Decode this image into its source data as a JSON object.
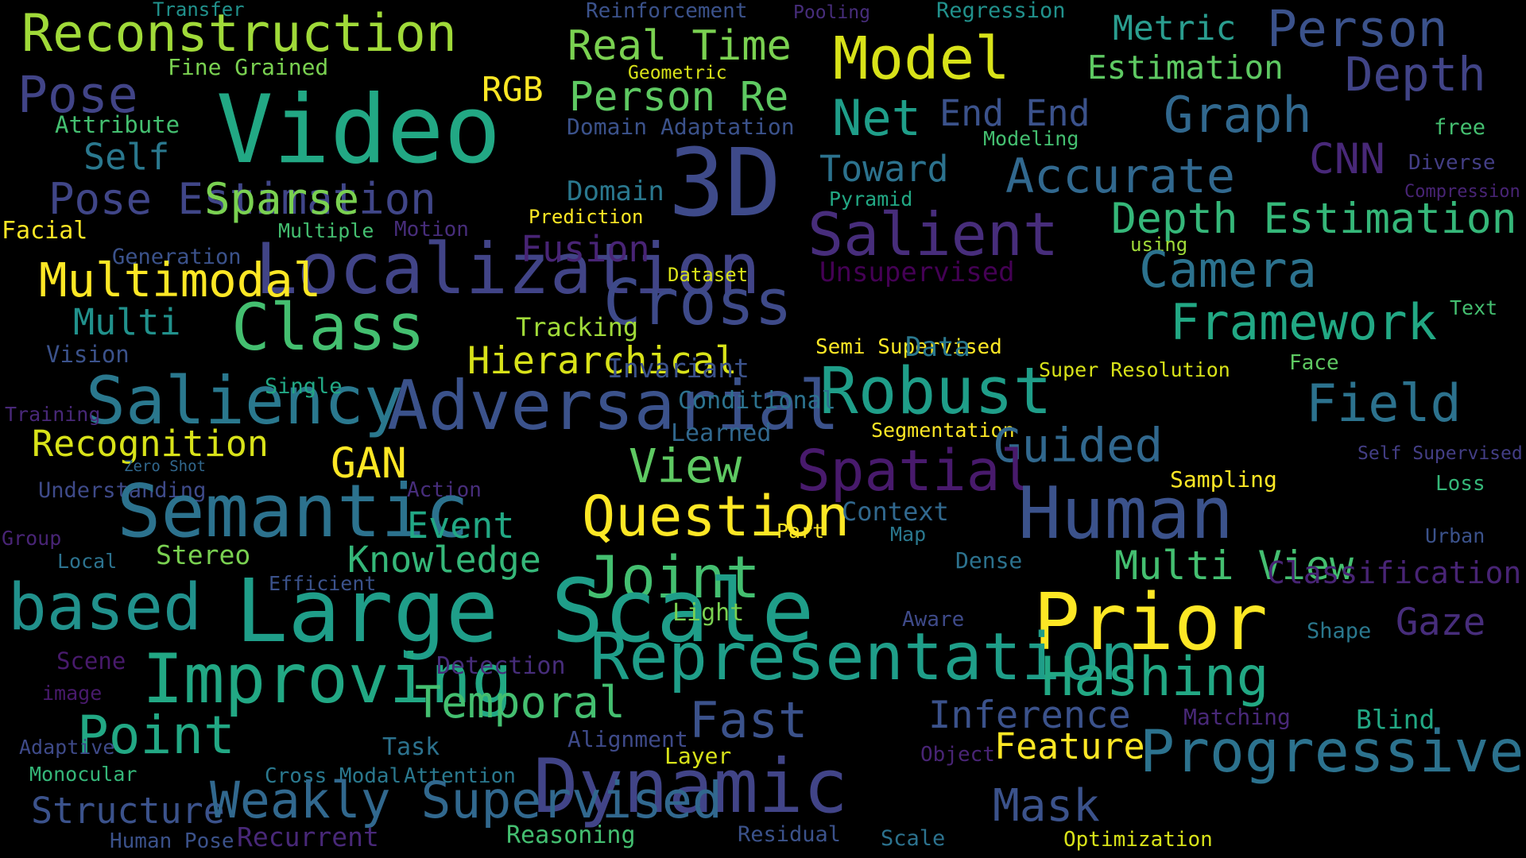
{
  "palette": {
    "background": "#000000",
    "dark_purple": "#440154",
    "indigo": "#3b528b",
    "teal": "#21918c",
    "green": "#5ec962",
    "yellow": "#fde725"
  },
  "words": [
    {
      "text": "Transfer",
      "color": "#21918c"
    },
    {
      "text": "Reinforcement",
      "color": "#3b528b"
    },
    {
      "text": "Pooling",
      "color": "#472d7b"
    },
    {
      "text": "Regression",
      "color": "#21918c"
    },
    {
      "text": "Reconstruction",
      "color": "#a0da39"
    },
    {
      "text": "Real Time",
      "color": "#7ad151"
    },
    {
      "text": "Model",
      "color": "#d8e219"
    },
    {
      "text": "Metric",
      "color": "#2a9d8f"
    },
    {
      "text": "Person",
      "color": "#3b528b"
    },
    {
      "text": "Fine Grained",
      "color": "#7ad151"
    },
    {
      "text": "Geometric",
      "color": "#d8e219"
    },
    {
      "text": "Estimation",
      "color": "#5ec962"
    },
    {
      "text": "Depth",
      "color": "#414487"
    },
    {
      "text": "Pose",
      "color": "#414487"
    },
    {
      "text": "Video",
      "color": "#22a884"
    },
    {
      "text": "RGB",
      "color": "#fde725"
    },
    {
      "text": "Person Re",
      "color": "#5ec962"
    },
    {
      "text": "End End",
      "color": "#3b528b"
    },
    {
      "text": "Net",
      "color": "#1f9e89"
    },
    {
      "text": "Graph",
      "color": "#31688e"
    },
    {
      "text": "Attribute",
      "color": "#44bf70"
    },
    {
      "text": "Domain Adaptation",
      "color": "#3b528b"
    },
    {
      "text": "Modeling",
      "color": "#44bf70"
    },
    {
      "text": "free",
      "color": "#44bf70"
    },
    {
      "text": "Self",
      "color": "#2a788e"
    },
    {
      "text": "3D",
      "color": "#3e4a89"
    },
    {
      "text": "CNN",
      "color": "#482878"
    },
    {
      "text": "Diverse",
      "color": "#433e85"
    },
    {
      "text": "Toward",
      "color": "#2c728e"
    },
    {
      "text": "Accurate",
      "color": "#31688e"
    },
    {
      "text": "Pose Estimation",
      "color": "#404688"
    },
    {
      "text": "Sparse",
      "color": "#7ad151"
    },
    {
      "text": "Domain",
      "color": "#2a788e"
    },
    {
      "text": "Pyramid",
      "color": "#22a884"
    },
    {
      "text": "Compression",
      "color": "#482475"
    },
    {
      "text": "Prediction",
      "color": "#fde725"
    },
    {
      "text": "Depth Estimation",
      "color": "#35b779"
    },
    {
      "text": "Facial",
      "color": "#fde725"
    },
    {
      "text": "Multiple",
      "color": "#44bf70"
    },
    {
      "text": "Motion",
      "color": "#472d7b"
    },
    {
      "text": "Salient",
      "color": "#472d7b"
    },
    {
      "text": "using",
      "color": "#a0da39"
    },
    {
      "text": "Localization",
      "color": "#414487"
    },
    {
      "text": "Fusion",
      "color": "#482475"
    },
    {
      "text": "Generation",
      "color": "#3b528b"
    },
    {
      "text": "Camera",
      "color": "#2c728e"
    },
    {
      "text": "Multimodal",
      "color": "#fde725"
    },
    {
      "text": "Dataset",
      "color": "#d8e219"
    },
    {
      "text": "Unsupervised",
      "color": "#440154"
    },
    {
      "text": "Cross",
      "color": "#3e4a89"
    },
    {
      "text": "Text",
      "color": "#44bf70"
    },
    {
      "text": "Multi",
      "color": "#21918c"
    },
    {
      "text": "Class",
      "color": "#44bf70"
    },
    {
      "text": "Tracking",
      "color": "#a0da39"
    },
    {
      "text": "Framework",
      "color": "#22a884"
    },
    {
      "text": "Vision",
      "color": "#3b528b"
    },
    {
      "text": "Semi Supervised",
      "color": "#fde725"
    },
    {
      "text": "Data",
      "color": "#2a788e"
    },
    {
      "text": "Hierarchical",
      "color": "#d8e219"
    },
    {
      "text": "Invariant",
      "color": "#3b528b"
    },
    {
      "text": "Super Resolution",
      "color": "#d8e219"
    },
    {
      "text": "Face",
      "color": "#5ec962"
    },
    {
      "text": "Saliency",
      "color": "#2a788e"
    },
    {
      "text": "Single",
      "color": "#22a884"
    },
    {
      "text": "Adversarial",
      "color": "#3b528b"
    },
    {
      "text": "Robust",
      "color": "#1f9e89"
    },
    {
      "text": "Field",
      "color": "#2c728e"
    },
    {
      "text": "Training",
      "color": "#482878"
    },
    {
      "text": "Conditional",
      "color": "#2c728e"
    },
    {
      "text": "Learned",
      "color": "#31688e"
    },
    {
      "text": "Segmentation",
      "color": "#fde725"
    },
    {
      "text": "Recognition",
      "color": "#d8e219"
    },
    {
      "text": "Guided",
      "color": "#31688e"
    },
    {
      "text": "GAN",
      "color": "#fde725"
    },
    {
      "text": "View",
      "color": "#5ec962"
    },
    {
      "text": "Spatial",
      "color": "#481a6c"
    },
    {
      "text": "Self Supervised",
      "color": "#433e85"
    },
    {
      "text": "Zero Shot",
      "color": "#31688e"
    },
    {
      "text": "Sampling",
      "color": "#fde725"
    },
    {
      "text": "Loss",
      "color": "#35b779"
    },
    {
      "text": "Understanding",
      "color": "#3e4a89"
    },
    {
      "text": "Action",
      "color": "#472d7b"
    },
    {
      "text": "Semantic",
      "color": "#2c728e"
    },
    {
      "text": "Human",
      "color": "#3b528b"
    },
    {
      "text": "Question",
      "color": "#fde725"
    },
    {
      "text": "Context",
      "color": "#31688e"
    },
    {
      "text": "Event",
      "color": "#22a884"
    },
    {
      "text": "Group",
      "color": "#482475"
    },
    {
      "text": "Part",
      "color": "#fde725"
    },
    {
      "text": "Map",
      "color": "#2a788e"
    },
    {
      "text": "Urban",
      "color": "#3b528b"
    },
    {
      "text": "Local",
      "color": "#2c728e"
    },
    {
      "text": "Stereo",
      "color": "#7ad151"
    },
    {
      "text": "Knowledge",
      "color": "#35b779"
    },
    {
      "text": "Dense",
      "color": "#2c728e"
    },
    {
      "text": "Multi View",
      "color": "#44bf70"
    },
    {
      "text": "Classification",
      "color": "#482475"
    },
    {
      "text": "Efficient",
      "color": "#3b528b"
    },
    {
      "text": "Joint",
      "color": "#44bf70"
    },
    {
      "text": "based",
      "color": "#21918c"
    },
    {
      "text": "Large Scale",
      "color": "#1f9e89"
    },
    {
      "text": "Light",
      "color": "#7ad151"
    },
    {
      "text": "Aware",
      "color": "#3e4a89"
    },
    {
      "text": "Prior",
      "color": "#fde725"
    },
    {
      "text": "Shape",
      "color": "#2a788e"
    },
    {
      "text": "Gaze",
      "color": "#472d7b"
    },
    {
      "text": "Scene",
      "color": "#481a6c"
    },
    {
      "text": "Improving",
      "color": "#22a884"
    },
    {
      "text": "Detection",
      "color": "#472d7b"
    },
    {
      "text": "Representation",
      "color": "#1f9e89"
    },
    {
      "text": "Hashing",
      "color": "#22a884"
    },
    {
      "text": "image",
      "color": "#481a6c"
    },
    {
      "text": "Temporal",
      "color": "#44bf70"
    },
    {
      "text": "Point",
      "color": "#22a884"
    },
    {
      "text": "Fast",
      "color": "#3b528b"
    },
    {
      "text": "Inference",
      "color": "#3b528b"
    },
    {
      "text": "Matching",
      "color": "#482878"
    },
    {
      "text": "Blind",
      "color": "#22a884"
    },
    {
      "text": "Adaptive",
      "color": "#3e4a89"
    },
    {
      "text": "Task",
      "color": "#2c728e"
    },
    {
      "text": "Alignment",
      "color": "#3e4a89"
    },
    {
      "text": "Layer",
      "color": "#d8e219"
    },
    {
      "text": "Object",
      "color": "#482475"
    },
    {
      "text": "Feature",
      "color": "#fde725"
    },
    {
      "text": "Progressive",
      "color": "#2c728e"
    },
    {
      "text": "Monocular",
      "color": "#35b779"
    },
    {
      "text": "Cross Modal",
      "color": "#2a788e"
    },
    {
      "text": "Attention",
      "color": "#2a788e"
    },
    {
      "text": "Dynamic",
      "color": "#414487"
    },
    {
      "text": "Structure",
      "color": "#3b528b"
    },
    {
      "text": "Weakly Supervised",
      "color": "#31688e"
    },
    {
      "text": "Mask",
      "color": "#3b528b"
    },
    {
      "text": "Human Pose",
      "color": "#3b528b"
    },
    {
      "text": "Recurrent",
      "color": "#482878"
    },
    {
      "text": "Reasoning",
      "color": "#44bf70"
    },
    {
      "text": "Residual",
      "color": "#3b528b"
    },
    {
      "text": "Scale",
      "color": "#2c728e"
    },
    {
      "text": "Optimization",
      "color": "#d8e219"
    }
  ]
}
